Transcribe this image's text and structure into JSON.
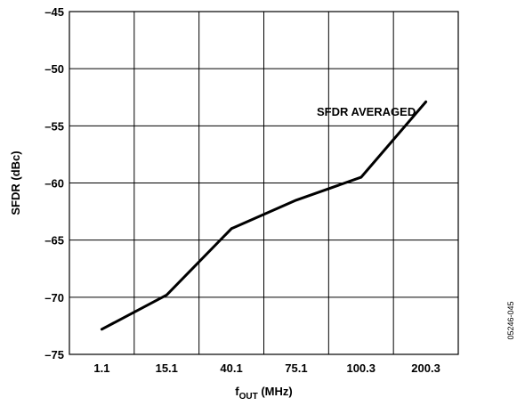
{
  "chart_data": {
    "type": "line",
    "categories": [
      "1.1",
      "15.1",
      "40.1",
      "75.1",
      "100.3",
      "200.3"
    ],
    "series": [
      {
        "name": "",
        "values": [
          -72.8,
          -69.8,
          -64.0,
          -61.5,
          -59.5,
          -52.9
        ]
      }
    ],
    "ylabel": "SFDR (dBc)",
    "xlabel_main": "f",
    "xlabel_sub": "OUT",
    "xlabel_rest": " (MHz)",
    "ylim": [
      -75,
      -45
    ],
    "yticks": [
      -45,
      -50,
      -55,
      -60,
      -65,
      -70,
      -75
    ],
    "ytick_labels": [
      "–45",
      "–50",
      "–55",
      "–60",
      "–65",
      "–70",
      "–75"
    ],
    "grid": true,
    "annotation": "SFDR AVERAGED",
    "figure_id": "05246-045"
  }
}
